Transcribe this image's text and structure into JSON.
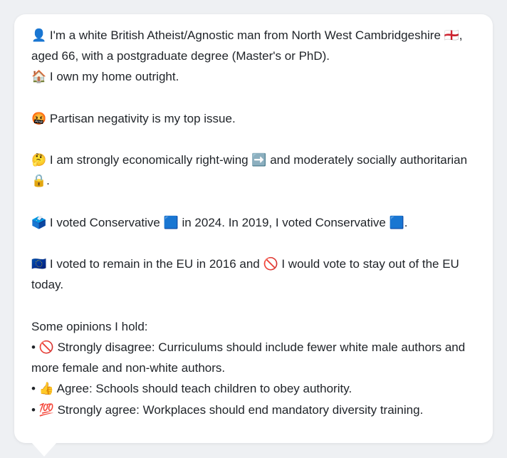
{
  "message": {
    "paragraphs": [
      [
        "👤 I'm a white British Atheist/Agnostic man from North West Cambridgeshire 🏴󠁧󠁢󠁥󠁮󠁧󠁿, aged 66, with a postgraduate degree (Master's or PhD).",
        "🏠 I own my home outright."
      ],
      [
        "🤬 Partisan negativity is my top issue."
      ],
      [
        "🤔 I am strongly economically right-wing ➡️ and moderately socially authoritarian 🔒."
      ],
      [
        "🗳️ I voted Conservative 🟦 in 2024. In 2019, I voted Conservative 🟦."
      ],
      [
        "🇪🇺 I voted to remain in the EU in 2016 and 🚫 I would vote to stay out of the EU today."
      ]
    ],
    "opinions": {
      "heading": "Some opinions I hold:",
      "items": [
        "• 🚫 Strongly disagree: Curriculums should include fewer white male authors and more female and non-white authors.",
        "• 👍 Agree: Schools should teach children to obey authority.",
        "• 💯 Strongly agree: Workplaces should end mandatory diversity training."
      ]
    }
  }
}
